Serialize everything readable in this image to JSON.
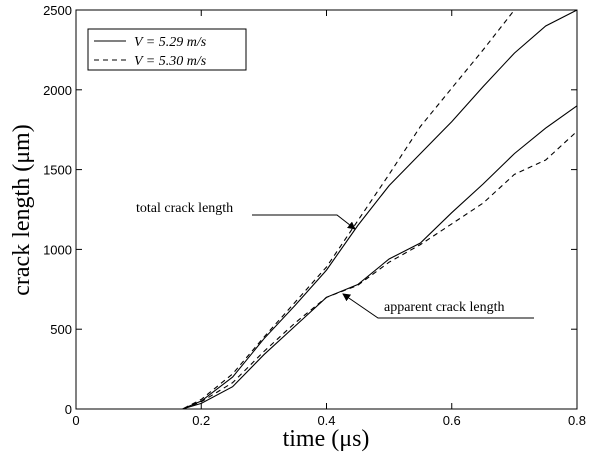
{
  "chart_data": {
    "type": "line",
    "title": "",
    "xlabel": "time (μs)",
    "ylabel": "crack length (μm)",
    "xlim": [
      0,
      0.8
    ],
    "ylim": [
      0,
      2500
    ],
    "xticks": [
      "0",
      "0.2",
      "0.4",
      "0.6",
      "0.8"
    ],
    "xtick_values": [
      0,
      0.2,
      0.4,
      0.6,
      0.8
    ],
    "yticks": [
      "0",
      "500",
      "1000",
      "1500",
      "2000",
      "2500"
    ],
    "ytick_values": [
      0,
      500,
      1000,
      1500,
      2000,
      2500
    ],
    "grid": false,
    "legend_position": "top-left",
    "legend": [
      {
        "label": "V = 5.29 m/s",
        "style": "solid"
      },
      {
        "label": "V = 5.30 m/s",
        "style": "dashed"
      }
    ],
    "series": [
      {
        "name": "V = 5.29 m/s",
        "quantity": "total crack length",
        "style": "solid",
        "x": [
          0,
          0.17,
          0.2,
          0.25,
          0.3,
          0.35,
          0.4,
          0.45,
          0.5,
          0.55,
          0.6,
          0.65,
          0.7,
          0.75,
          0.8
        ],
        "y": [
          0,
          0,
          50,
          200,
          440,
          650,
          870,
          1150,
          1400,
          1600,
          1800,
          2020,
          2230,
          2400,
          2500
        ]
      },
      {
        "name": "V = 5.30 m/s",
        "quantity": "total crack length",
        "style": "dashed",
        "x": [
          0,
          0.17,
          0.2,
          0.25,
          0.3,
          0.35,
          0.4,
          0.45,
          0.5,
          0.55,
          0.6,
          0.65,
          0.7
        ],
        "y": [
          0,
          0,
          60,
          220,
          450,
          670,
          890,
          1180,
          1470,
          1770,
          2010,
          2250,
          2500
        ]
      },
      {
        "name": "V = 5.29 m/s",
        "quantity": "apparent crack length",
        "style": "solid",
        "x": [
          0,
          0.17,
          0.2,
          0.25,
          0.3,
          0.35,
          0.4,
          0.45,
          0.5,
          0.55,
          0.6,
          0.65,
          0.7,
          0.75,
          0.8
        ],
        "y": [
          0,
          0,
          35,
          140,
          340,
          520,
          700,
          780,
          940,
          1040,
          1230,
          1410,
          1600,
          1760,
          1900
        ]
      },
      {
        "name": "V = 5.30 m/s",
        "quantity": "apparent crack length",
        "style": "dashed",
        "x": [
          0,
          0.17,
          0.2,
          0.25,
          0.3,
          0.35,
          0.4,
          0.45,
          0.5,
          0.55,
          0.6,
          0.65,
          0.7,
          0.75,
          0.8
        ],
        "y": [
          0,
          0,
          45,
          165,
          360,
          540,
          700,
          775,
          920,
          1030,
          1160,
          1290,
          1470,
          1560,
          1740
        ]
      }
    ],
    "annotations": [
      {
        "text": "total crack length",
        "target_x": 0.44,
        "target_y": 1130
      },
      {
        "text": "apparent crack length",
        "target_x": 0.43,
        "target_y": 745
      }
    ]
  }
}
